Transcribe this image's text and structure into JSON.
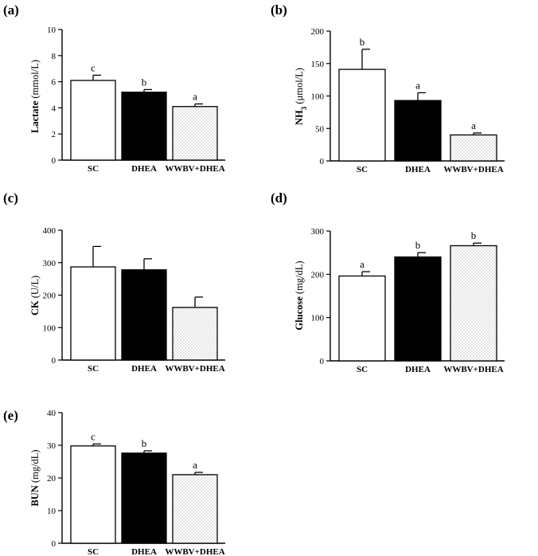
{
  "chart_data": [
    {
      "panel": "(a)",
      "type": "bar",
      "ylabel_main": "Lactate",
      "ylabel_units": "(mmol/L)",
      "categories": [
        "SC",
        "DHEA",
        "WWBV+DHEA"
      ],
      "values": [
        6.1,
        5.2,
        4.1
      ],
      "errors": [
        0.4,
        0.2,
        0.2
      ],
      "significance": [
        "c",
        "b",
        "a"
      ],
      "ylim": [
        0,
        10
      ],
      "yticks": [
        0,
        2,
        4,
        6,
        8,
        10
      ]
    },
    {
      "panel": "(b)",
      "type": "bar",
      "ylabel_main": "NH",
      "ylabel_sub": "3",
      "ylabel_units": "(μmol/L)",
      "categories": [
        "SC",
        "DHEA",
        "WWBV+DHEA"
      ],
      "values": [
        141,
        93,
        40
      ],
      "errors": [
        31,
        12,
        3
      ],
      "significance": [
        "b",
        "a",
        "a"
      ],
      "ylim": [
        0,
        200
      ],
      "yticks": [
        0,
        50,
        100,
        150,
        200
      ]
    },
    {
      "panel": "(c)",
      "type": "bar",
      "ylabel_main": "CK",
      "ylabel_units": "(U/L)",
      "categories": [
        "SC",
        "DHEA",
        "WWBV+DHEA"
      ],
      "values": [
        287,
        278,
        162
      ],
      "errors": [
        63,
        34,
        32
      ],
      "significance": [
        "",
        "",
        ""
      ],
      "ylim": [
        0,
        400
      ],
      "yticks": [
        0,
        100,
        200,
        300,
        400
      ]
    },
    {
      "panel": "(d)",
      "type": "bar",
      "ylabel_main": "Glucose",
      "ylabel_units": "(mg/dL)",
      "categories": [
        "SC",
        "DHEA",
        "WWBV+DHEA"
      ],
      "values": [
        196,
        240,
        266
      ],
      "errors": [
        10,
        10,
        6
      ],
      "significance": [
        "a",
        "b",
        "b"
      ],
      "ylim": [
        0,
        300
      ],
      "yticks": [
        0,
        100,
        200,
        300
      ]
    },
    {
      "panel": "(e)",
      "type": "bar",
      "ylabel_main": "BUN",
      "ylabel_units": "(mg/dL)",
      "categories": [
        "SC",
        "DHEA",
        "WWBV+DHEA"
      ],
      "values": [
        29.8,
        27.6,
        21.0
      ],
      "errors": [
        0.6,
        0.7,
        0.7
      ],
      "significance": [
        "c",
        "b",
        "a"
      ],
      "ylim": [
        0,
        40
      ],
      "yticks": [
        0,
        10,
        20,
        30,
        40
      ]
    }
  ]
}
